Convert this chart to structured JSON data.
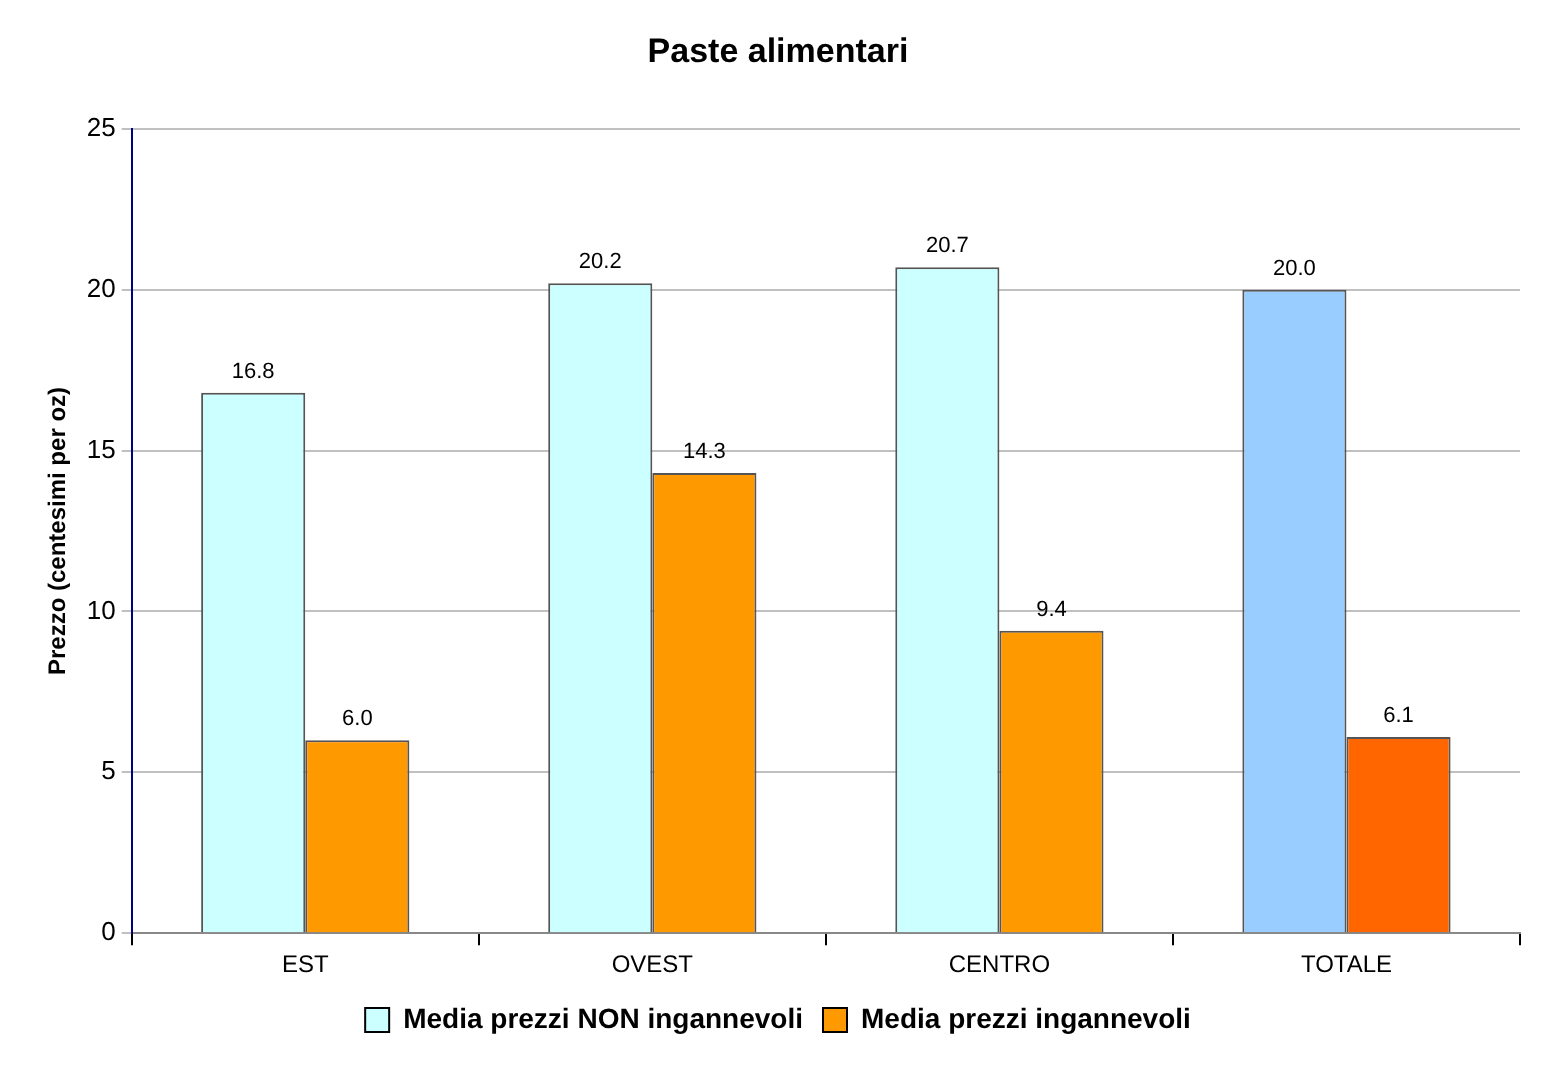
{
  "chart_data": {
    "type": "bar",
    "title": "Paste alimentari",
    "ylabel": "Prezzo (centesimi per oz)",
    "categories": [
      "EST",
      "OVEST",
      "CENTRO",
      "TOTALE"
    ],
    "series": [
      {
        "name": "Media prezzi NON ingannevoli",
        "color": "#ccffff",
        "colors": [
          "#ccffff",
          "#ccffff",
          "#ccffff",
          "#99ccff"
        ],
        "values": [
          16.8,
          20.2,
          20.7,
          20.0
        ],
        "value_labels": [
          "16.8",
          "20.2",
          "20.7",
          "20.0"
        ]
      },
      {
        "name": "Media prezzi ingannevoli",
        "color": "#ff9900",
        "colors": [
          "#ff9900",
          "#ff9900",
          "#ff9900",
          "#ff6600"
        ],
        "values": [
          6.0,
          14.3,
          9.4,
          6.1
        ],
        "value_labels": [
          "6.0",
          "14.3",
          "9.4",
          "6.1"
        ]
      }
    ],
    "ylim": [
      0,
      25
    ],
    "yticks": [
      0,
      5,
      10,
      15,
      20,
      25
    ],
    "grid": "y",
    "legend": "bottom"
  }
}
